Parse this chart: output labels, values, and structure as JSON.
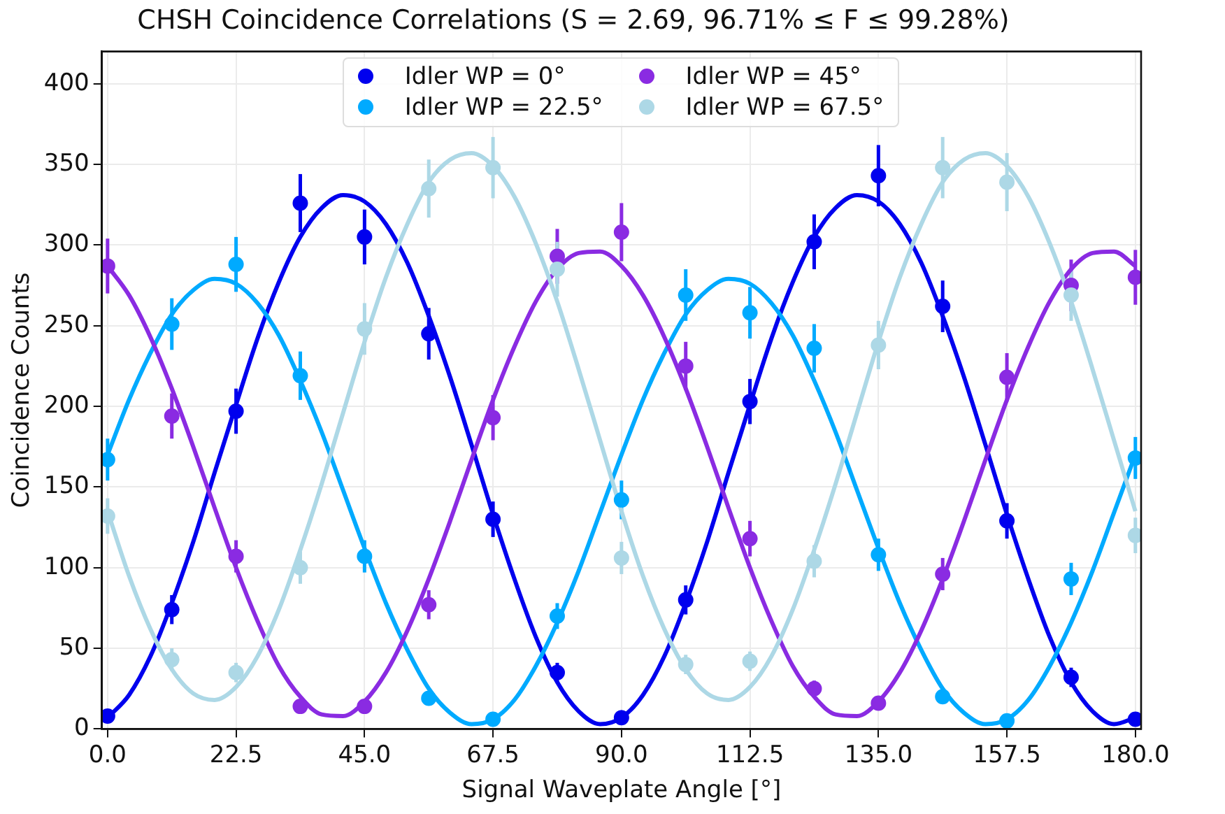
{
  "chart_data": {
    "type": "scatter",
    "title": "CHSH Coincidence Correlations (S = 2.69, 96.71% ≤ F ≤ 99.28%)",
    "xlabel": "Signal Waveplate Angle [°]",
    "ylabel": "Coincidence Counts",
    "x": [
      0,
      11.25,
      22.5,
      33.75,
      45,
      56.25,
      67.5,
      78.75,
      90,
      101.25,
      112.5,
      123.75,
      135,
      146.25,
      157.5,
      168.75,
      180
    ],
    "series": [
      {
        "name": "Idler WP = 0°",
        "color": "#0000ee",
        "values": [
          8,
          74,
          197,
          326,
          305,
          245,
          130,
          35,
          7,
          80,
          203,
          302,
          343,
          262,
          129,
          32,
          6
        ],
        "errors": [
          3,
          9,
          14,
          18,
          17,
          16,
          11,
          6,
          3,
          9,
          14,
          17,
          19,
          16,
          11,
          6,
          2
        ]
      },
      {
        "name": "Idler WP = 22.5°",
        "color": "#00aaff",
        "values": [
          167,
          251,
          288,
          219,
          107,
          19,
          6,
          70,
          142,
          269,
          258,
          236,
          108,
          20,
          5,
          93,
          168
        ],
        "errors": [
          13,
          16,
          17,
          15,
          10,
          4,
          2,
          8,
          12,
          16,
          16,
          15,
          10,
          4,
          2,
          10,
          13
        ]
      },
      {
        "name": "Idler WP = 45°",
        "color": "#8a2be2",
        "values": [
          287,
          194,
          107,
          14,
          14,
          77,
          193,
          293,
          308,
          225,
          118,
          25,
          16,
          96,
          218,
          275,
          280
        ],
        "errors": [
          17,
          14,
          10,
          4,
          4,
          9,
          14,
          17,
          18,
          15,
          11,
          5,
          4,
          10,
          15,
          16,
          17
        ]
      },
      {
        "name": "Idler WP = 67.5°",
        "color": "#add8e6",
        "values": [
          132,
          43,
          35,
          100,
          248,
          335,
          348,
          285,
          106,
          40,
          42,
          104,
          238,
          348,
          339,
          269,
          120
        ],
        "errors": [
          11,
          7,
          6,
          10,
          16,
          18,
          19,
          17,
          10,
          6,
          6,
          10,
          15,
          19,
          18,
          16,
          11
        ]
      },
      {
        "type": "line",
        "marker": "none",
        "color": "#0000ee",
        "x": [
          0,
          3.75,
          7.5,
          11.25,
          15,
          18.75,
          22.5,
          26.25,
          30,
          33.75,
          37.5,
          41.25,
          45,
          48.75,
          52.5,
          56.25,
          60,
          63.75,
          67.5,
          71.25,
          75,
          78.75,
          82.5,
          86.25,
          90,
          93.75,
          97.5,
          101.25,
          105,
          108.75,
          112.5,
          116.25,
          120,
          123.75,
          127.5,
          131.25,
          135,
          138.75,
          142.5,
          146.25,
          150,
          153.75,
          157.5,
          161.25,
          165,
          168.75,
          172.5,
          176.25,
          180
        ],
        "values": [
          7,
          21,
          45,
          78,
          116,
          159,
          201,
          242,
          277,
          305,
          323,
          331,
          327,
          313,
          289,
          256,
          218,
          176,
          133,
          93,
          57,
          29,
          11,
          3,
          7,
          21,
          45,
          78,
          116,
          159,
          201,
          242,
          277,
          305,
          323,
          331,
          327,
          313,
          289,
          256,
          218,
          176,
          133,
          93,
          57,
          29,
          11,
          3,
          7
        ]
      },
      {
        "type": "line",
        "marker": "none",
        "color": "#00aaff",
        "x": [
          0,
          3.75,
          7.5,
          11.25,
          15,
          18.75,
          22.5,
          26.25,
          30,
          33.75,
          37.5,
          41.25,
          45,
          48.75,
          52.5,
          56.25,
          60,
          63.75,
          67.5,
          71.25,
          75,
          78.75,
          82.5,
          86.25,
          90,
          93.75,
          97.5,
          101.25,
          105,
          108.75,
          112.5,
          116.25,
          120,
          123.75,
          127.5,
          131.25,
          135,
          138.75,
          142.5,
          146.25,
          150,
          153.75,
          157.5,
          161.25,
          165,
          168.75,
          172.5,
          176.25,
          180
        ],
        "values": [
          170,
          204,
          233,
          257,
          272,
          279,
          276,
          264,
          244,
          216,
          184,
          148,
          112,
          78,
          49,
          25,
          10,
          3,
          6,
          18,
          39,
          66,
          98,
          134,
          170,
          204,
          233,
          257,
          272,
          279,
          276,
          264,
          244,
          216,
          184,
          148,
          112,
          78,
          49,
          25,
          10,
          3,
          6,
          18,
          39,
          66,
          98,
          134,
          170
        ]
      },
      {
        "type": "line",
        "marker": "none",
        "color": "#8a2be2",
        "x": [
          0,
          3.75,
          7.5,
          11.25,
          15,
          18.75,
          22.5,
          26.25,
          30,
          33.75,
          37.5,
          41.25,
          45,
          48.75,
          52.5,
          56.25,
          60,
          63.75,
          67.5,
          71.25,
          75,
          78.75,
          82.5,
          86.25,
          90,
          93.75,
          97.5,
          101.25,
          105,
          108.75,
          112.5,
          116.25,
          120,
          123.75,
          127.5,
          131.25,
          135,
          138.75,
          142.5,
          146.25,
          150,
          153.75,
          157.5,
          161.25,
          165,
          168.75,
          172.5,
          176.25,
          180
        ],
        "values": [
          287,
          269,
          243,
          211,
          175,
          137,
          100,
          67,
          39,
          20,
          9,
          8,
          17,
          35,
          61,
          93,
          129,
          167,
          204,
          237,
          265,
          285,
          295,
          296,
          287,
          269,
          243,
          211,
          175,
          137,
          100,
          67,
          39,
          20,
          9,
          8,
          17,
          35,
          61,
          93,
          129,
          167,
          204,
          237,
          265,
          285,
          295,
          296,
          287
        ]
      },
      {
        "type": "line",
        "marker": "none",
        "color": "#add8e6",
        "x": [
          0,
          3.75,
          7.5,
          11.25,
          15,
          18.75,
          22.5,
          26.25,
          30,
          33.75,
          37.5,
          41.25,
          45,
          48.75,
          52.5,
          56.25,
          60,
          63.75,
          67.5,
          71.25,
          75,
          78.75,
          82.5,
          86.25,
          90,
          93.75,
          97.5,
          101.25,
          105,
          108.75,
          112.5,
          116.25,
          120,
          123.75,
          127.5,
          131.25,
          135,
          138.75,
          142.5,
          146.25,
          150,
          153.75,
          157.5,
          161.25,
          165,
          168.75,
          172.5,
          176.25,
          180
        ],
        "values": [
          135,
          95,
          62,
          37,
          22,
          18,
          26,
          45,
          74,
          111,
          152,
          196,
          240,
          280,
          313,
          339,
          353,
          357,
          349,
          330,
          301,
          265,
          223,
          179,
          135,
          95,
          62,
          37,
          22,
          18,
          26,
          45,
          74,
          111,
          152,
          196,
          240,
          280,
          313,
          339,
          353,
          357,
          349,
          330,
          301,
          265,
          223,
          179,
          135
        ]
      }
    ],
    "xlim": [
      -1,
      181
    ],
    "xticks": [
      {
        "value": 0,
        "label": "0.0"
      },
      {
        "value": 22.5,
        "label": "22.5"
      },
      {
        "value": 45,
        "label": "45.0"
      },
      {
        "value": 67.5,
        "label": "67.5"
      },
      {
        "value": 90,
        "label": "90.0"
      },
      {
        "value": 112.5,
        "label": "112.5"
      },
      {
        "value": 135,
        "label": "135.0"
      },
      {
        "value": 157.5,
        "label": "157.5"
      },
      {
        "value": 180,
        "label": "180.0"
      }
    ],
    "ylim": [
      0,
      420
    ],
    "yticks": [
      0,
      50,
      100,
      150,
      200,
      250,
      300,
      350,
      400
    ],
    "grid": true,
    "legend": "top",
    "marker": "circle",
    "line_style": "solid"
  }
}
